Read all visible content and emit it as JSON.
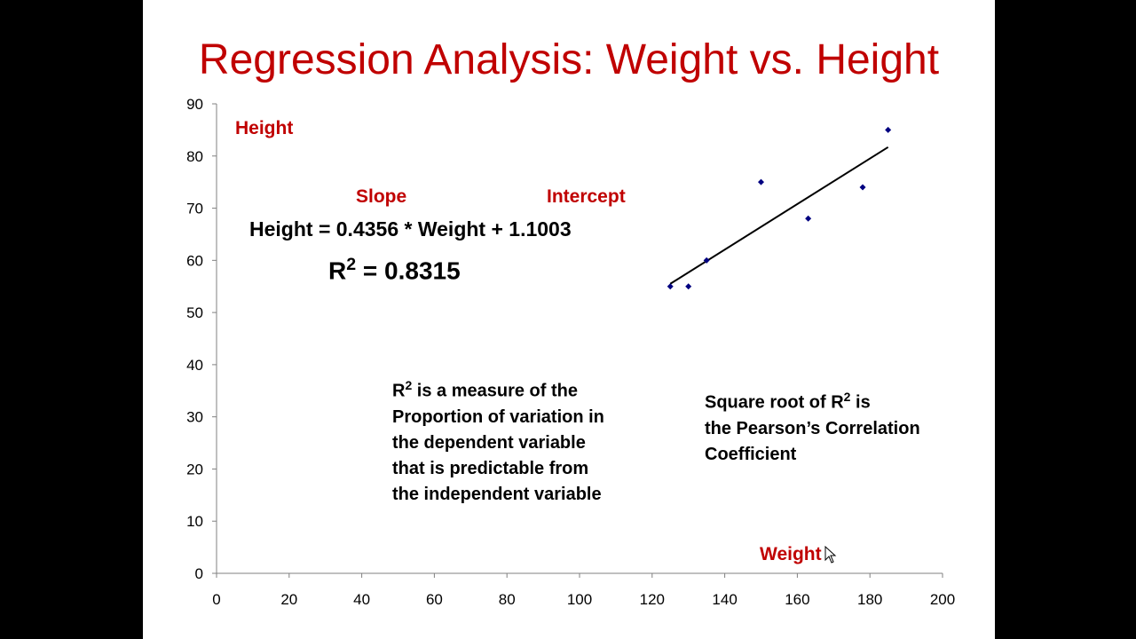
{
  "slide": {
    "title": "Regression Analysis: Weight vs. Height"
  },
  "annotations": {
    "slope_label": "Slope",
    "intercept_label": "Intercept",
    "equation": "Height = 0.4356 * Weight + 1.1003",
    "r2_symbol": "R",
    "r2_exponent": "2",
    "r2_value": "= 0.8315",
    "r2_note_prefix": "R",
    "r2_note_exponent": "2",
    "r2_note_first_line_rest": " is a measure of the",
    "r2_note_lines": [
      "Proportion of variation in",
      "the dependent variable",
      "that is predictable from",
      "the independent variable"
    ],
    "sqrt_note_first_prefix": "Square root of R",
    "sqrt_note_exponent": "2",
    "sqrt_note_first_suffix": " is",
    "sqrt_note_lines": [
      "the Pearson’s Correlation",
      "Coefficient"
    ]
  },
  "chart_data": {
    "type": "scatter",
    "xlabel": "Weight",
    "ylabel": "Height",
    "xlim": [
      0,
      200
    ],
    "ylim": [
      0,
      90
    ],
    "x_ticks": [
      0,
      20,
      40,
      60,
      80,
      100,
      120,
      140,
      160,
      180,
      200
    ],
    "y_ticks": [
      0,
      10,
      20,
      30,
      40,
      50,
      60,
      70,
      80,
      90
    ],
    "grid": false,
    "points": [
      {
        "x": 125,
        "y": 55
      },
      {
        "x": 130,
        "y": 55
      },
      {
        "x": 135,
        "y": 60
      },
      {
        "x": 150,
        "y": 75
      },
      {
        "x": 163,
        "y": 68
      },
      {
        "x": 178,
        "y": 74
      },
      {
        "x": 185,
        "y": 85
      }
    ],
    "trendline": {
      "x_start": 125,
      "x_end": 185,
      "y_start": 55.5,
      "y_end": 81.7
    },
    "colors": {
      "points": "#000080",
      "trendline": "#000000",
      "axis_labels": "#c00000"
    }
  }
}
